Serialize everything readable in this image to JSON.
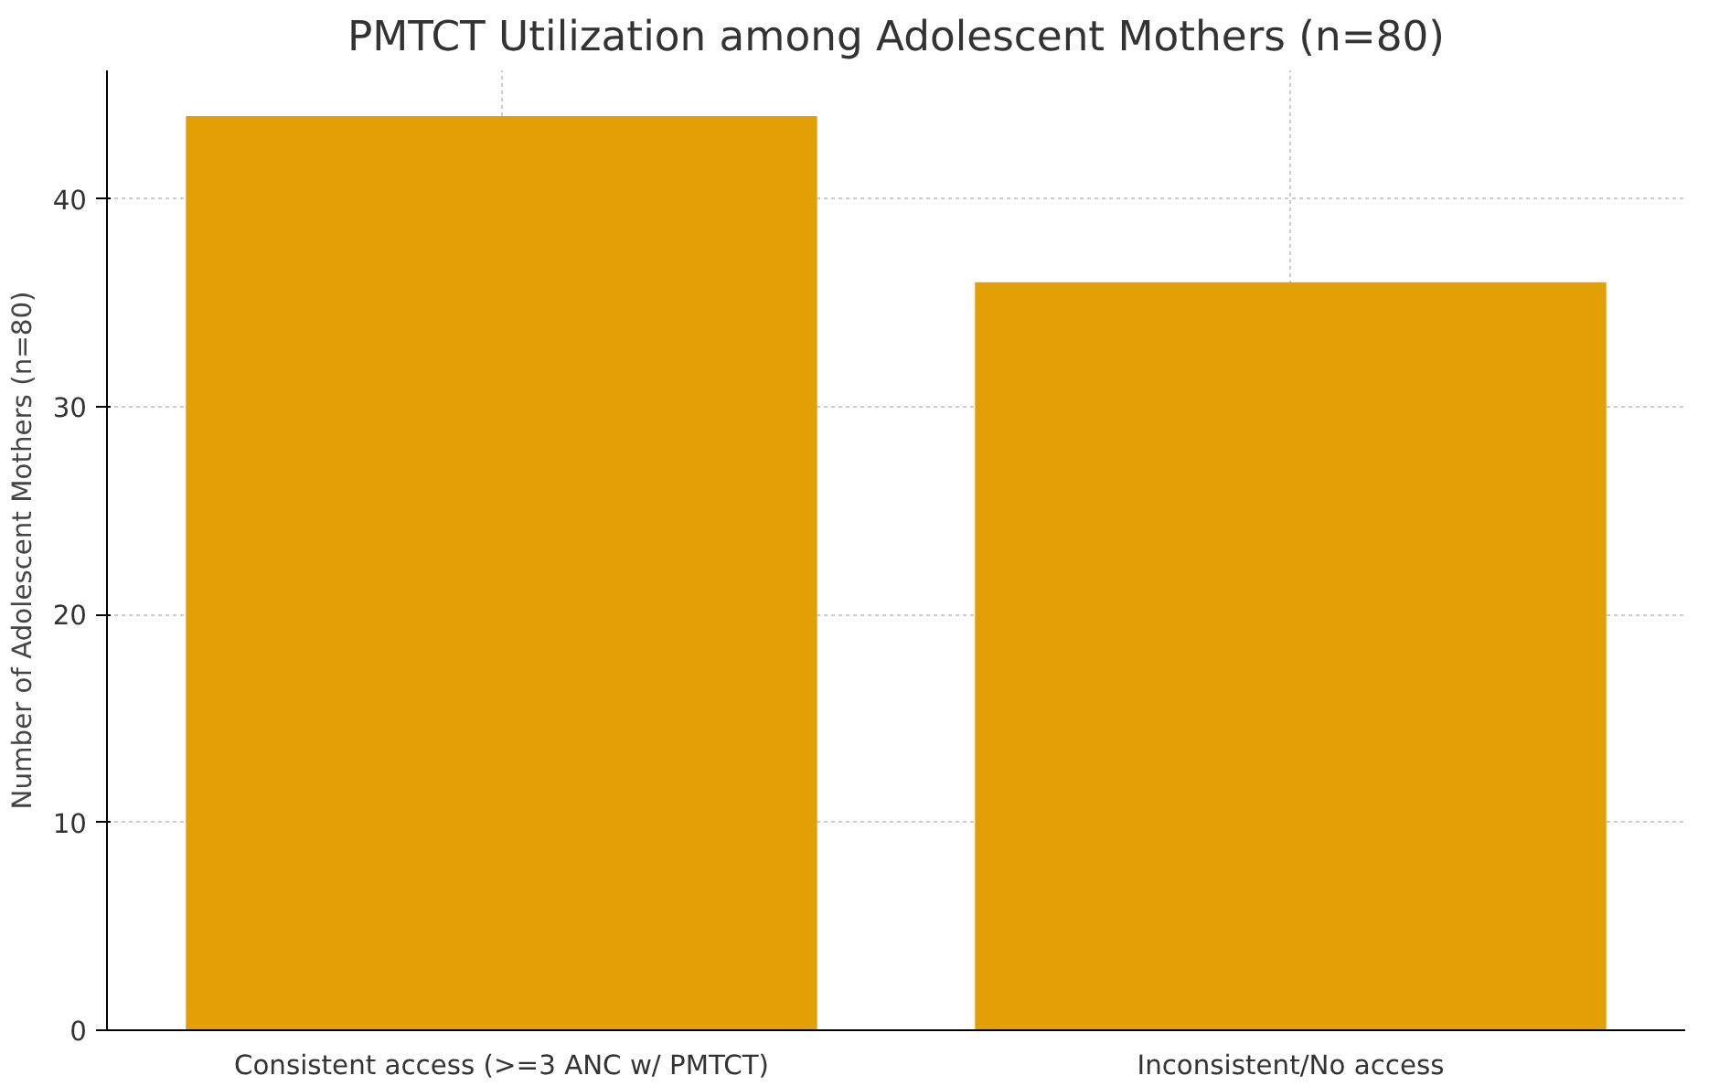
{
  "chart_data": {
    "type": "bar",
    "title": "PMTCT Utilization among Adolescent Mothers (n=80)",
    "ylabel": "Number of Adolescent Mothers (n=80)",
    "categories": [
      "Consistent access (>=3 ANC w/ PMTCT)",
      "Inconsistent/No access"
    ],
    "values": [
      44,
      36
    ],
    "color": "#e3a004",
    "ylim": [
      0,
      46.2
    ],
    "yticks": [
      0,
      10,
      20,
      30,
      40
    ],
    "grid": true
  }
}
